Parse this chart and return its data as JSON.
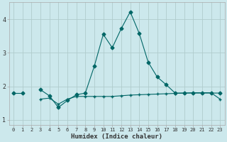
{
  "title": "",
  "xlabel": "Humidex (Indice chaleur)",
  "bg_color": "#cce8ec",
  "grid_color": "#b0cccc",
  "line_color": "#006666",
  "x_values": [
    0,
    1,
    2,
    3,
    4,
    5,
    6,
    7,
    8,
    9,
    10,
    11,
    12,
    13,
    14,
    15,
    16,
    17,
    18,
    19,
    20,
    21,
    22,
    23
  ],
  "line1_y": [
    1.8,
    1.8,
    null,
    1.9,
    1.72,
    1.37,
    1.58,
    1.75,
    1.8,
    2.6,
    3.55,
    3.15,
    3.72,
    4.22,
    3.58,
    2.72,
    2.28,
    2.05,
    1.8,
    1.8,
    1.8,
    1.8,
    1.8,
    1.8
  ],
  "line2_y": [
    null,
    null,
    null,
    1.62,
    1.65,
    1.47,
    1.62,
    1.7,
    1.7,
    1.7,
    1.7,
    1.7,
    1.72,
    1.74,
    1.75,
    1.76,
    1.77,
    1.78,
    1.79,
    1.8,
    1.81,
    1.81,
    1.81,
    1.62
  ],
  "xlim": [
    -0.5,
    23.5
  ],
  "ylim": [
    0.85,
    4.5
  ],
  "yticks": [
    1,
    2,
    3,
    4
  ],
  "xticks": [
    0,
    1,
    2,
    3,
    4,
    5,
    6,
    7,
    8,
    9,
    10,
    11,
    12,
    13,
    14,
    15,
    16,
    17,
    18,
    19,
    20,
    21,
    22,
    23
  ]
}
